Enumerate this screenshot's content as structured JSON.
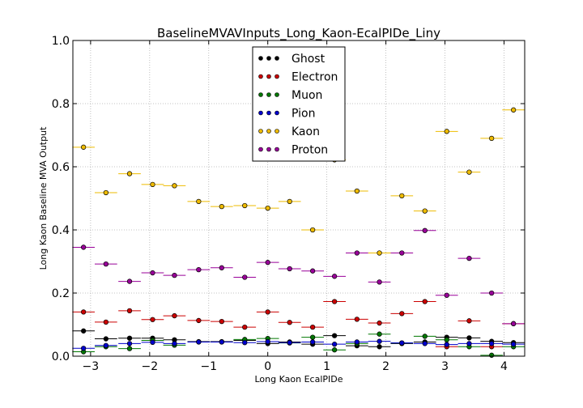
{
  "chart_data": {
    "type": "scatter",
    "title": "BaselineMVAVInputs_Long_Kaon-EcalPIDe_Liny",
    "xlabel": "Long Kaon EcalPIDe",
    "ylabel": "Long Kaon Baseline MVA Output",
    "xlim": [
      -3.3,
      4.35
    ],
    "ylim": [
      0.0,
      1.0
    ],
    "x_ticks": [
      -3,
      -2,
      -1,
      0,
      1,
      2,
      3,
      4
    ],
    "x_tick_labels": [
      "−3",
      "−2",
      "−1",
      "0",
      "1",
      "2",
      "3",
      "4"
    ],
    "y_ticks": [
      0.0,
      0.2,
      0.4,
      0.6,
      0.8,
      1.0
    ],
    "y_tick_labels": [
      "0.0",
      "0.2",
      "0.4",
      "0.6",
      "0.8",
      "1.0"
    ],
    "grid": true,
    "legend_position": "top-center",
    "x": [
      -3.12,
      -2.74,
      -2.34,
      -1.95,
      -1.58,
      -1.17,
      -0.78,
      -0.39,
      0.0,
      0.37,
      0.76,
      1.13,
      1.51,
      1.89,
      2.27,
      2.66,
      3.03,
      3.41,
      3.79,
      4.16
    ],
    "x_half_width": 0.19,
    "series": [
      {
        "name": "Ghost",
        "color": "#000000",
        "values": [
          0.08,
          0.055,
          0.057,
          0.057,
          0.052,
          0.046,
          0.046,
          0.05,
          0.04,
          0.045,
          0.038,
          0.065,
          0.033,
          0.03,
          0.04,
          0.045,
          0.06,
          0.058,
          0.047,
          0.043
        ]
      },
      {
        "name": "Electron",
        "color": "#cc0000",
        "values": [
          0.14,
          0.108,
          0.144,
          0.116,
          0.128,
          0.113,
          0.11,
          0.092,
          0.14,
          0.107,
          0.092,
          0.173,
          0.117,
          0.105,
          0.135,
          0.173,
          0.03,
          0.112,
          0.03,
          0.103
        ]
      },
      {
        "name": "Muon",
        "color": "#007700",
        "values": [
          0.014,
          0.03,
          0.024,
          0.05,
          0.035,
          0.045,
          0.045,
          0.053,
          0.056,
          0.042,
          0.06,
          0.02,
          0.04,
          0.07,
          0.042,
          0.063,
          0.052,
          0.03,
          0.003,
          0.03
        ]
      },
      {
        "name": "Pion",
        "color": "#0000cc",
        "values": [
          0.025,
          0.034,
          0.04,
          0.044,
          0.04,
          0.045,
          0.045,
          0.043,
          0.046,
          0.043,
          0.045,
          0.038,
          0.045,
          0.047,
          0.042,
          0.04,
          0.037,
          0.04,
          0.04,
          0.038
        ]
      },
      {
        "name": "Kaon",
        "color": "#eebb00",
        "values": [
          0.662,
          0.518,
          0.578,
          0.544,
          0.54,
          0.49,
          0.474,
          0.477,
          0.469,
          0.49,
          0.4,
          0.622,
          0.523,
          0.327,
          0.508,
          0.46,
          0.712,
          0.583,
          0.69,
          0.78
        ]
      },
      {
        "name": "Proton",
        "color": "#990099",
        "values": [
          0.345,
          0.292,
          0.237,
          0.264,
          0.256,
          0.274,
          0.28,
          0.25,
          0.297,
          0.277,
          0.27,
          0.253,
          0.327,
          0.235,
          0.327,
          0.398,
          0.193,
          0.31,
          0.2,
          0.103
        ]
      }
    ]
  }
}
